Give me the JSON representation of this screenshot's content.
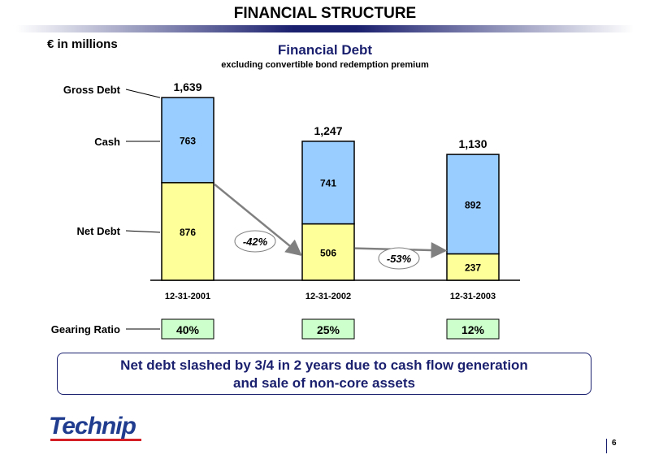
{
  "slide": {
    "title": "FINANCIAL STRUCTURE",
    "units": "€ in millions",
    "conclusion_line1": "Net debt slashed by 3/4 in 2 years due to cash flow generation",
    "conclusion_line2": "and sale of non-core assets",
    "logo_text": "Technip",
    "page_number": "6"
  },
  "colors": {
    "net_debt": "#ffff99",
    "cash": "#99ccff",
    "gearing": "#ccffcc",
    "accent": "#1a1f6e"
  },
  "chart_data": {
    "type": "bar",
    "stacked": true,
    "title": "Financial Debt",
    "subtitle": "excluding convertible bond redemption premium",
    "categories": [
      "12-31-2001",
      "12-31-2002",
      "12-31-2003"
    ],
    "series": [
      {
        "name": "Net Debt",
        "values": [
          876,
          506,
          237
        ]
      },
      {
        "name": "Cash",
        "values": [
          763,
          741,
          892
        ]
      }
    ],
    "totals": [
      1639,
      1247,
      1130
    ],
    "totals_labels": [
      "1,639",
      "1,247",
      "1,130"
    ],
    "row_labels": {
      "gross": "Gross Debt",
      "cash": "Cash",
      "net": "Net Debt",
      "gearing": "Gearing Ratio"
    },
    "changes": [
      "-42%",
      "-53%"
    ],
    "gearing_ratio": [
      "40%",
      "25%",
      "12%"
    ],
    "ylim": [
      0,
      1700
    ]
  }
}
